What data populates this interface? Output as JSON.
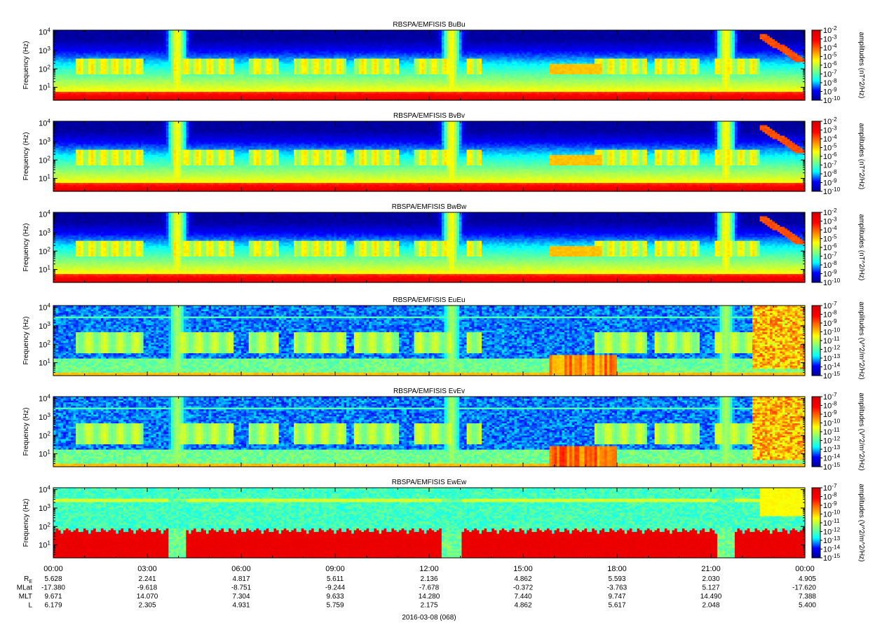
{
  "chart_data": [
    {
      "type": "heatmap",
      "title": "RBSPA/EMFISIS  BuBu",
      "ylabel": "Frequency (Hz)",
      "colorbar_label": "amplitudes (nT^2/Hz)",
      "colorbar_ticks": [
        "10^-10",
        "10^-9",
        "10^-8",
        "10^-7",
        "10^-6",
        "10^-5",
        "10^-4",
        "10^-3",
        "10^-2"
      ],
      "colorbar_range": [
        -10,
        -2
      ],
      "ylim_log10": [
        0.3,
        4.1
      ],
      "yticks": [
        "10^1",
        "10^2",
        "10^3",
        "10^4"
      ],
      "scale": "log",
      "variant": "B"
    },
    {
      "type": "heatmap",
      "title": "RBSPA/EMFISIS  BvBv",
      "ylabel": "Frequency (Hz)",
      "colorbar_label": "amplitudes (nT^2/Hz)",
      "colorbar_ticks": [
        "10^-10",
        "10^-9",
        "10^-8",
        "10^-7",
        "10^-6",
        "10^-5",
        "10^-4",
        "10^-3",
        "10^-2"
      ],
      "colorbar_range": [
        -10,
        -2
      ],
      "ylim_log10": [
        0.3,
        4.1
      ],
      "yticks": [
        "10^1",
        "10^2",
        "10^3",
        "10^4"
      ],
      "scale": "log",
      "variant": "B"
    },
    {
      "type": "heatmap",
      "title": "RBSPA/EMFISIS  BwBw",
      "ylabel": "Frequency (Hz)",
      "colorbar_label": "amplitudes (nT^2/Hz)",
      "colorbar_ticks": [
        "10^-10",
        "10^-9",
        "10^-8",
        "10^-7",
        "10^-6",
        "10^-5",
        "10^-4",
        "10^-3",
        "10^-2"
      ],
      "colorbar_range": [
        -10,
        -2
      ],
      "ylim_log10": [
        0.3,
        4.1
      ],
      "yticks": [
        "10^1",
        "10^2",
        "10^3",
        "10^4"
      ],
      "scale": "log",
      "variant": "B"
    },
    {
      "type": "heatmap",
      "title": "RBSPA/EMFISIS  EuEu",
      "ylabel": "Frequency (Hz)",
      "colorbar_label": "amplitudes (V^2/m^2/Hz)",
      "colorbar_ticks": [
        "10^-15",
        "10^-14",
        "10^-13",
        "10^-12",
        "10^-11",
        "10^-10",
        "10^-9",
        "10^-8",
        "10^-7"
      ],
      "colorbar_range": [
        -15,
        -7
      ],
      "ylim_log10": [
        0.3,
        4.1
      ],
      "yticks": [
        "10^1",
        "10^2",
        "10^3",
        "10^4"
      ],
      "scale": "log",
      "variant": "E"
    },
    {
      "type": "heatmap",
      "title": "RBSPA/EMFISIS  EvEv",
      "ylabel": "Frequency (Hz)",
      "colorbar_label": "amplitudes (V^2/m^2/Hz)",
      "colorbar_ticks": [
        "10^-15",
        "10^-14",
        "10^-13",
        "10^-12",
        "10^-11",
        "10^-10",
        "10^-9",
        "10^-8",
        "10^-7"
      ],
      "colorbar_range": [
        -15,
        -7
      ],
      "ylim_log10": [
        0.3,
        4.1
      ],
      "yticks": [
        "10^1",
        "10^2",
        "10^3",
        "10^4"
      ],
      "scale": "log",
      "variant": "E"
    },
    {
      "type": "heatmap",
      "title": "RBSPA/EMFISIS  EwEw",
      "ylabel": "Frequency (Hz)",
      "colorbar_label": "amplitudes (V^2/m^2/Hz)",
      "colorbar_ticks": [
        "10^-15",
        "10^-14",
        "10^-13",
        "10^-12",
        "10^-11",
        "10^-10",
        "10^-9",
        "10^-8",
        "10^-7"
      ],
      "colorbar_range": [
        -15,
        -7
      ],
      "ylim_log10": [
        0.3,
        4.1
      ],
      "yticks": [
        "10^1",
        "10^2",
        "10^3",
        "10^4"
      ],
      "scale": "log",
      "variant": "Ew"
    }
  ],
  "time_axis": {
    "ticks": [
      "00:00",
      "03:00",
      "06:00",
      "09:00",
      "12:00",
      "15:00",
      "18:00",
      "21:00",
      "00:00"
    ],
    "date_label": "2016-03-08 (068)"
  },
  "ephemeris": [
    {
      "label": "R",
      "sub": "E",
      "values": [
        "5.628",
        "2.241",
        "4.817",
        "5.611",
        "2.136",
        "4.862",
        "5.593",
        "2.030",
        "4.905"
      ]
    },
    {
      "label": "MLat",
      "sub": "",
      "values": [
        "-17.380",
        "-9.618",
        "-8.751",
        "-9.244",
        "-7.678",
        "-0.372",
        "-3.763",
        "5.127",
        "-17.620"
      ]
    },
    {
      "label": "MLT",
      "sub": "",
      "values": [
        "9.671",
        "14.070",
        "7.304",
        "9.633",
        "14.280",
        "7.440",
        "9.747",
        "14.490",
        "7.388"
      ]
    },
    {
      "label": "L",
      "sub": "",
      "values": [
        "6.179",
        "2.305",
        "4.931",
        "5.759",
        "2.175",
        "4.862",
        "5.617",
        "2.048",
        "5.400"
      ]
    }
  ],
  "colors": {
    "background": "#ffffff",
    "axis": "#000000",
    "colormap": [
      "#00008f",
      "#0000ff",
      "#00ffff",
      "#7fff7f",
      "#ffff00",
      "#ff7f00",
      "#ff0000",
      "#d40000"
    ]
  }
}
